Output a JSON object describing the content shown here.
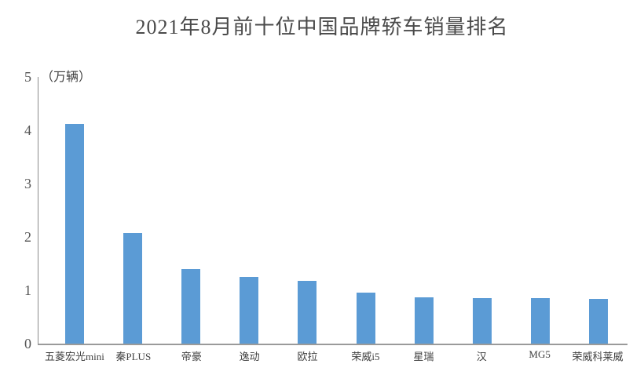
{
  "chart_data": {
    "type": "bar",
    "title": "2021年8月前十位中国品牌轿车销量排名",
    "unit_label": "（万辆）",
    "categories": [
      "五菱宏光mini",
      "秦PLUS",
      "帝豪",
      "逸动",
      "欧拉",
      "荣威i5",
      "星瑞",
      "汉",
      "MG5",
      "荣威科莱威"
    ],
    "values": [
      4.12,
      2.07,
      1.4,
      1.25,
      1.18,
      0.96,
      0.87,
      0.86,
      0.86,
      0.84
    ],
    "xlabel": "",
    "ylabel": "万辆",
    "ylim": [
      0,
      5
    ],
    "yticks": [
      5,
      4,
      3,
      2,
      1,
      0
    ],
    "grid": false,
    "legend": false,
    "bar_color": "#5B9BD5",
    "axis_color": "#8c8c8c",
    "title_color": "#4a4a4a",
    "tick_color": "#555555",
    "label_color": "#3f3f3f"
  }
}
